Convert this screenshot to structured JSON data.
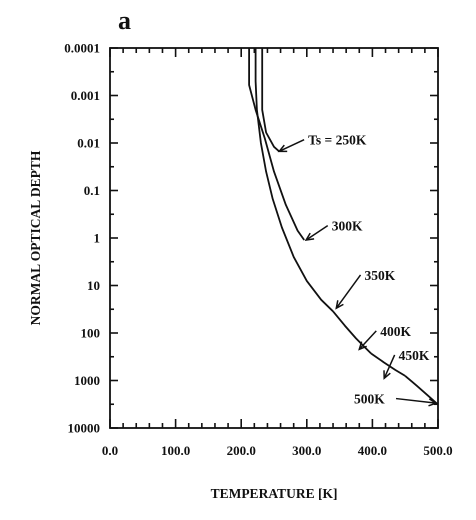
{
  "chart_data": {
    "type": "line",
    "panel_label": "a",
    "xlabel": "TEMPERATURE [K]",
    "ylabel": "NORMAL OPTICAL DEPTH",
    "xlim": [
      0,
      500
    ],
    "ylim": [
      0.0001,
      10000
    ],
    "yscale": "log",
    "y_inverted": true,
    "x_ticks": [
      {
        "value": 0,
        "label": "0.0"
      },
      {
        "value": 100,
        "label": "100.0"
      },
      {
        "value": 200,
        "label": "200.0"
      },
      {
        "value": 300,
        "label": "300.0"
      },
      {
        "value": 400,
        "label": "400.0"
      },
      {
        "value": 500,
        "label": "500.0"
      }
    ],
    "y_ticks": [
      {
        "value": 0.0001,
        "label": "0.0001"
      },
      {
        "value": 0.001,
        "label": "0.001"
      },
      {
        "value": 0.01,
        "label": "0.01"
      },
      {
        "value": 0.1,
        "label": "0.1"
      },
      {
        "value": 1,
        "label": "1"
      },
      {
        "value": 10,
        "label": "10"
      },
      {
        "value": 100,
        "label": "100"
      },
      {
        "value": 1000,
        "label": "1000"
      },
      {
        "value": 10000,
        "label": "10000"
      }
    ],
    "grid": false,
    "series": [
      {
        "label": "Ts = 250K",
        "x": [
          232,
          232,
          232,
          238,
          250,
          258
        ],
        "y": [
          0.0001,
          0.0006,
          0.002,
          0.006,
          0.012,
          0.015
        ]
      },
      {
        "label": "300K",
        "x": [
          212,
          212,
          212,
          222,
          236,
          250,
          268,
          286,
          296
        ],
        "y": [
          0.0001,
          0.0003,
          0.0006,
          0.002,
          0.008,
          0.04,
          0.2,
          0.7,
          1.1
        ]
      },
      {
        "label": "350K",
        "x": [
          222,
          222,
          224,
          230,
          238,
          248,
          262,
          280,
          300,
          322,
          340
        ],
        "y": [
          0.0001,
          0.0005,
          0.002,
          0.01,
          0.04,
          0.15,
          0.6,
          2.5,
          8,
          20,
          35
        ]
      },
      {
        "label": "400K",
        "x": [
          340,
          358,
          375,
          390,
          398
        ],
        "y": [
          35,
          70,
          130,
          210,
          270
        ]
      },
      {
        "label": "450K",
        "x": [
          398,
          418,
          435,
          450
        ],
        "y": [
          270,
          420,
          600,
          800
        ]
      },
      {
        "label": "500K",
        "x": [
          450,
          468,
          485,
          500
        ],
        "y": [
          800,
          1300,
          2100,
          3200
        ]
      }
    ],
    "annotations": [
      {
        "text": "Ts = 250K",
        "text_x": 302,
        "text_y": 0.0085,
        "point_x": 258,
        "point_y": 0.015
      },
      {
        "text": "300K",
        "text_x": 338,
        "text_y": 0.55,
        "point_x": 299,
        "point_y": 1.1
      },
      {
        "text": "350K",
        "text_x": 388,
        "text_y": 6,
        "point_x": 345,
        "point_y": 30
      },
      {
        "text": "400K",
        "text_x": 412,
        "text_y": 90,
        "point_x": 380,
        "point_y": 220
      },
      {
        "text": "450K",
        "text_x": 440,
        "text_y": 290,
        "point_x": 418,
        "point_y": 900
      },
      {
        "text": "500K",
        "text_x": 372,
        "text_y": 2400,
        "point_x": 497,
        "point_y": 3000
      }
    ]
  }
}
